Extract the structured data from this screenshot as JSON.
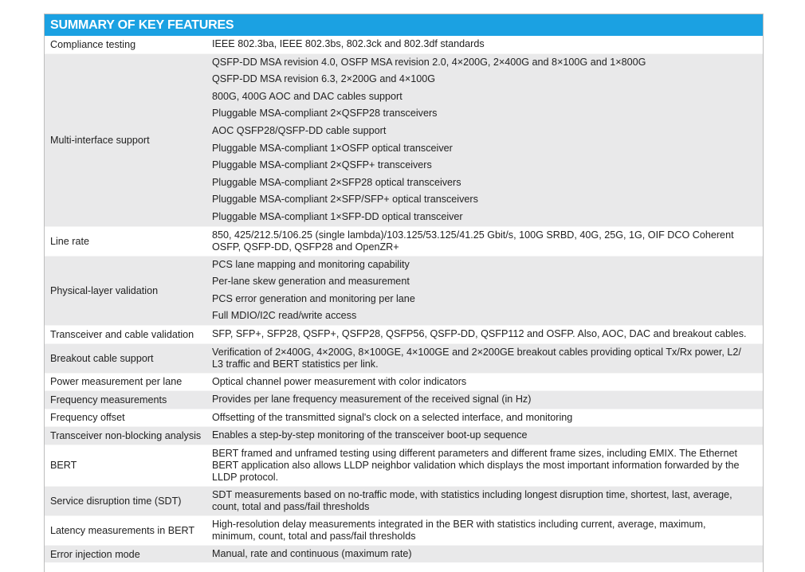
{
  "title": "SUMMARY OF KEY FEATURES",
  "accent_color": "#1ba1e2",
  "rows": [
    {
      "label": "Compliance testing",
      "lines": [
        "IEEE 802.3ba, IEEE 802.3bs, 802.3ck and 802.3df standards"
      ]
    },
    {
      "label": "Multi-interface support",
      "lines": [
        "QSFP-DD MSA revision 4.0, OSFP MSA revision 2.0, 4×200G, 2×400G and 8×100G and 1×800G",
        "QSFP-DD MSA revision 6.3, 2×200G and 4×100G",
        "800G, 400G AOC and DAC cables support",
        "Pluggable MSA-compliant 2×QSFP28 transceivers",
        "AOC QSFP28/QSFP-DD cable support",
        "Pluggable MSA-compliant 1×OSFP optical transceiver",
        "Pluggable MSA-compliant 2×QSFP+ transceivers",
        "Pluggable MSA-compliant 2×SFP28 optical transceivers",
        "Pluggable MSA-compliant 2×SFP/SFP+ optical transceivers",
        "Pluggable MSA-compliant 1×SFP-DD optical transceiver"
      ]
    },
    {
      "label": "Line rate",
      "text": "850, 425/212.5/106.25 (single lambda)/103.125/53.125/41.25 Gbit/s, 100G SRBD, 40G, 25G, 1G, OIF DCO Coherent OSFP, QSFP-DD, QSFP28 and OpenZR+"
    },
    {
      "label": "Physical-layer validation",
      "lines": [
        "PCS lane mapping and monitoring capability",
        "Per-lane skew generation and measurement",
        "PCS error generation and monitoring per lane",
        "Full MDIO/I2C read/write access"
      ]
    },
    {
      "label": "Transceiver and cable validation",
      "lines": [
        "SFP, SFP+, SFP28, QSFP+, QSFP28, QSFP56, QSFP-DD, QSFP112 and OSFP. Also, AOC, DAC and breakout cables."
      ]
    },
    {
      "label": "Breakout cable support",
      "text": "Verification of 2×400G, 4×200G, 8×100GE, 4×100GE and 2×200GE breakout cables providing optical Tx/Rx power, L2/ L3 traffic and BERT statistics per link."
    },
    {
      "label": "Power measurement per lane",
      "lines": [
        "Optical channel power measurement with color indicators"
      ]
    },
    {
      "label": "Frequency measurements",
      "lines": [
        "Provides per lane frequency measurement of the received signal (in Hz)"
      ]
    },
    {
      "label": "Frequency offset",
      "lines": [
        "Offsetting of the transmitted signal's clock on a selected interface, and monitoring"
      ]
    },
    {
      "label": "Transceiver non-blocking analysis",
      "lines": [
        "Enables a step-by-step monitoring of the transceiver boot-up sequence"
      ]
    },
    {
      "label": "BERT",
      "text": "BERT framed and unframed testing using different parameters and different frame sizes, including EMIX. The Ethernet BERT application also allows LLDP neighbor validation which displays the most important information forwarded by the LLDP protocol."
    },
    {
      "label": "Service disruption time (SDT)",
      "text": "SDT measurements based on no-traffic mode, with statistics including longest disruption time, shortest, last, average, count, total and pass/fail thresholds"
    },
    {
      "label": "Latency measurements in BERT",
      "text": "High-resolution delay measurements integrated in the BER with statistics including current, average, maximum, minimum, count, total and pass/fail thresholds"
    },
    {
      "label": "Error injection mode",
      "lines": [
        "Manual, rate and continuous (maximum rate)"
      ]
    }
  ]
}
